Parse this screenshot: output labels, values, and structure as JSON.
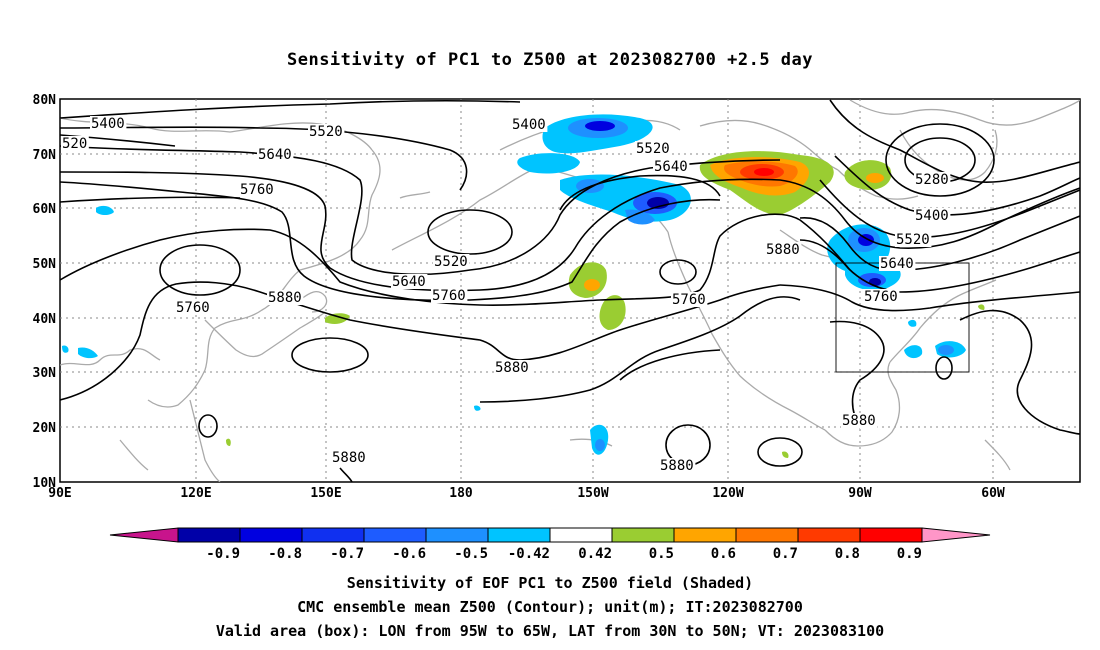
{
  "title": "Sensitivity of PC1 to Z500 at 2023082700 +2.5 day",
  "map": {
    "lat_labels": [
      "80N",
      "70N",
      "60N",
      "50N",
      "40N",
      "30N",
      "20N",
      "10N"
    ],
    "lon_labels": [
      "90E",
      "120E",
      "150E",
      "180",
      "150W",
      "120W",
      "90W",
      "60W"
    ],
    "contour_labels": [
      {
        "text": "5400",
        "region": "north-pacific-west"
      },
      {
        "text": "5520",
        "region": "north-pacific-west"
      },
      {
        "text": "520",
        "region": "west-edge"
      },
      {
        "text": "5640",
        "region": "asia"
      },
      {
        "text": "5760",
        "region": "asia"
      },
      {
        "text": "5400",
        "region": "bering-sea"
      },
      {
        "text": "5520",
        "region": "alaska"
      },
      {
        "text": "5640",
        "region": "alaska"
      },
      {
        "text": "5520",
        "region": "north-pacific"
      },
      {
        "text": "5640",
        "region": "north-pacific"
      },
      {
        "text": "5760",
        "region": "north-pacific"
      },
      {
        "text": "5880",
        "region": "japan"
      },
      {
        "text": "5760",
        "region": "east-china"
      },
      {
        "text": "5880",
        "region": "subtropical-pacific"
      },
      {
        "text": "5760",
        "region": "us-west-coast"
      },
      {
        "text": "5880",
        "region": "central-us"
      },
      {
        "text": "5280",
        "region": "greenland"
      },
      {
        "text": "5400",
        "region": "labrador"
      },
      {
        "text": "5520",
        "region": "quebec"
      },
      {
        "text": "5640",
        "region": "great-lakes"
      },
      {
        "text": "5760",
        "region": "ohio-valley"
      },
      {
        "text": "5880",
        "region": "gulf-of-mexico"
      },
      {
        "text": "5880",
        "region": "hawaii"
      },
      {
        "text": "5880",
        "region": "western-pacific"
      }
    ],
    "valid_box": {
      "lon_west": "95W",
      "lon_east": "65W",
      "lat_south": "30N",
      "lat_north": "50N"
    }
  },
  "colorbar": {
    "labels": [
      "-0.9",
      "-0.8",
      "-0.7",
      "-0.6",
      "-0.5",
      "-0.42",
      "0.42",
      "0.5",
      "0.6",
      "0.7",
      "0.8",
      "0.9"
    ],
    "colors": [
      "#0000a8",
      "#0000e0",
      "#1030f0",
      "#1e5cff",
      "#1e90ff",
      "#00c4ff",
      "#ffffff",
      "#9acd32",
      "#ffa500",
      "#ff7700",
      "#ff3a00",
      "#ff0000"
    ],
    "low_extend_color": "#c8148c",
    "high_extend_color": "#ff96c8"
  },
  "captions": [
    "Sensitivity of EOF PC1 to Z500 field (Shaded)",
    "CMC ensemble mean Z500 (Contour); unit(m); IT:2023082700",
    "Valid area (box): LON from 95W to 65W, LAT from 30N to 50N; VT: 2023083100"
  ]
}
